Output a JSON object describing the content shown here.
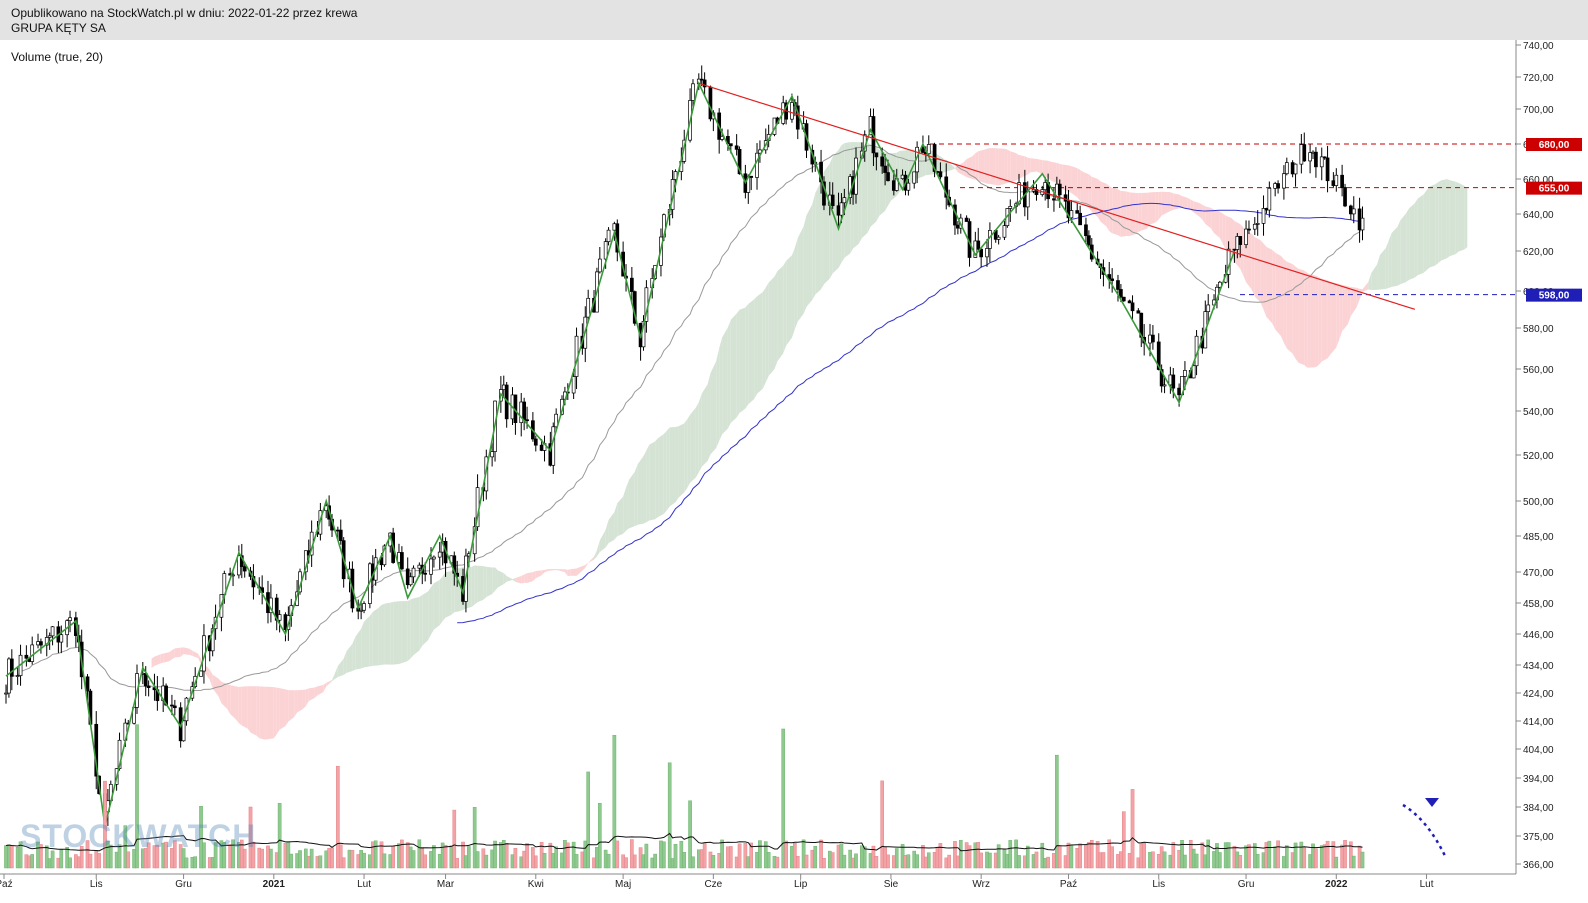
{
  "header": {
    "published": "Opublikowano na StockWatch.pl w dniu: 2022-01-22 przez krewa",
    "symbol": "GRUPA KĘTY SA"
  },
  "indicator_label": "Volume (true, 20)",
  "watermark": "STOCKWATCH",
  "colors": {
    "up": "#90c990",
    "down": "#f3a3a6",
    "zigzag": "#3a9a3a",
    "trendline": "#e02020",
    "sma200": "#3333cc",
    "sma50": "#999999",
    "cloud_bull": "#d5e3d5",
    "cloud_bear": "#fbd3d5",
    "level_red": "#cc0000",
    "level_blue": "#1f1fb8"
  },
  "chart_data": {
    "type": "candlestick",
    "title": "GRUPA KĘTY SA",
    "y_axis_labels": [
      "740,00",
      "720,00",
      "700,00",
      "680,00",
      "660,00",
      "640,00",
      "620,00",
      "600,00",
      "580,00",
      "560,00",
      "540,00",
      "520,00",
      "500,00",
      "485,00",
      "470,00",
      "458,00",
      "446,00",
      "434,00",
      "424,00",
      "414,00",
      "404,00",
      "394,00",
      "384,00",
      "375,00",
      "366,00"
    ],
    "y_axis_values": [
      740,
      720,
      700,
      680,
      660,
      640,
      620,
      600,
      580,
      560,
      540,
      520,
      500,
      485,
      470,
      458,
      446,
      434,
      424,
      414,
      404,
      394,
      384,
      375,
      366
    ],
    "y_scale": "log",
    "x_axis_labels": [
      "Paź",
      "Lis",
      "Gru",
      "2021",
      "Lut",
      "Mar",
      "Kwi",
      "Maj",
      "Cze",
      "Lip",
      "Sie",
      "Wrz",
      "Paź",
      "Lis",
      "Gru",
      "2022",
      "Lut"
    ],
    "x_range": [
      "2020-10-01",
      "2022-02-07"
    ],
    "levels": [
      {
        "value": 680,
        "label": "680,00",
        "color": "#cc0000"
      },
      {
        "value": 655,
        "label": "655,00",
        "color": "#cc0000"
      },
      {
        "value": 598,
        "label": "598,00",
        "color": "#1f1fb8"
      }
    ],
    "zigzag": [
      {
        "date": "2020-10-01",
        "close": 430
      },
      {
        "date": "2020-10-25",
        "close": 451
      },
      {
        "date": "2020-11-04",
        "close": 378
      },
      {
        "date": "2020-11-17",
        "close": 433
      },
      {
        "date": "2020-11-30",
        "close": 412
      },
      {
        "date": "2020-12-20",
        "close": 478
      },
      {
        "date": "2021-01-05",
        "close": 446
      },
      {
        "date": "2021-01-19",
        "close": 500
      },
      {
        "date": "2021-01-30",
        "close": 456
      },
      {
        "date": "2021-02-10",
        "close": 485
      },
      {
        "date": "2021-02-16",
        "close": 460
      },
      {
        "date": "2021-02-27",
        "close": 485
      },
      {
        "date": "2021-03-07",
        "close": 462
      },
      {
        "date": "2021-03-20",
        "close": 548
      },
      {
        "date": "2021-04-06",
        "close": 522
      },
      {
        "date": "2021-04-28",
        "close": 630
      },
      {
        "date": "2021-05-07",
        "close": 575
      },
      {
        "date": "2021-05-27",
        "close": 716
      },
      {
        "date": "2021-06-12",
        "close": 658
      },
      {
        "date": "2021-06-28",
        "close": 708
      },
      {
        "date": "2021-07-14",
        "close": 632
      },
      {
        "date": "2021-07-25",
        "close": 688
      },
      {
        "date": "2021-08-05",
        "close": 654
      },
      {
        "date": "2021-08-12",
        "close": 680
      },
      {
        "date": "2021-08-30",
        "close": 618
      },
      {
        "date": "2021-09-22",
        "close": 663
      },
      {
        "date": "2021-10-18",
        "close": 598
      },
      {
        "date": "2021-11-08",
        "close": 544
      },
      {
        "date": "2021-11-27",
        "close": 620
      }
    ],
    "trendline": [
      {
        "date": "2021-05-27",
        "value": 716
      },
      {
        "date": "2022-01-28",
        "value": 590
      }
    ],
    "last_close": 630,
    "series": [
      {
        "name": "Volume (true, 20)",
        "type": "bar",
        "y_range_label": "volume"
      }
    ]
  }
}
